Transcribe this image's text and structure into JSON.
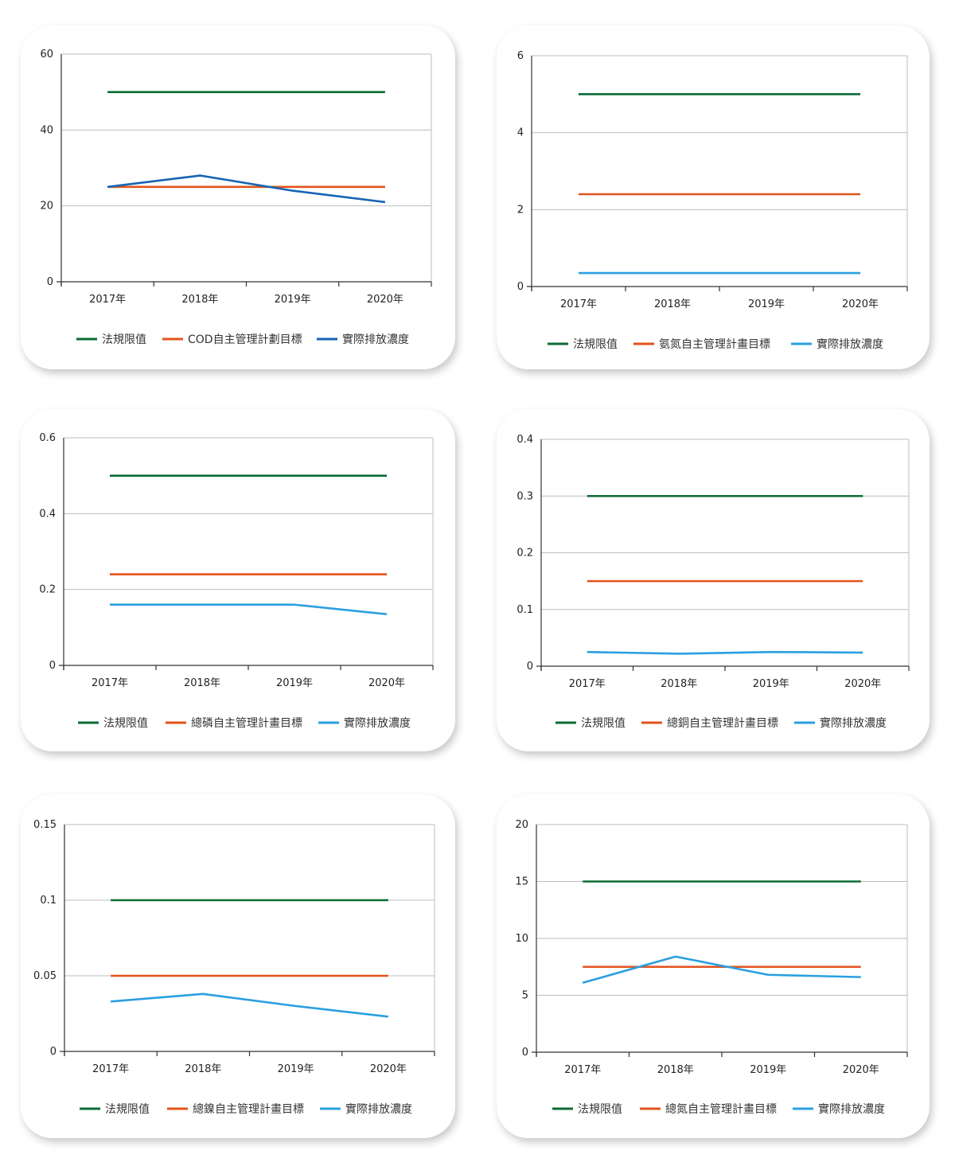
{
  "chart_data": [
    {
      "type": "line",
      "categories": [
        "2017年",
        "2018年",
        "2019年",
        "2020年"
      ],
      "ylim": [
        0,
        60
      ],
      "yticks": [
        "0",
        "20",
        "40",
        "60"
      ],
      "grid": true,
      "legend_position": "bottom",
      "series": [
        {
          "name": "法規限值",
          "color": "#0b6b34",
          "values": [
            50,
            50,
            50,
            50
          ]
        },
        {
          "name": "COD自主管理計劃目標",
          "color": "#e2531c",
          "values": [
            25,
            25,
            25,
            25
          ]
        },
        {
          "name": "實際排放濃度",
          "color": "#1565b5",
          "values": [
            25,
            28,
            24,
            21
          ]
        }
      ]
    },
    {
      "type": "line",
      "categories": [
        "2017年",
        "2018年",
        "2019年",
        "2020年"
      ],
      "ylim": [
        0,
        6
      ],
      "yticks": [
        "0",
        "2",
        "4",
        "6"
      ],
      "grid": true,
      "legend_position": "bottom",
      "series": [
        {
          "name": "法規限值",
          "color": "#0b6b34",
          "values": [
            5,
            5,
            5,
            5
          ]
        },
        {
          "name": "氨氮自主管理計畫目標",
          "color": "#e2531c",
          "values": [
            2.4,
            2.4,
            2.4,
            2.4
          ]
        },
        {
          "name": "實際排放濃度",
          "color": "#2a9fe0",
          "values": [
            0.35,
            0.35,
            0.35,
            0.35
          ]
        }
      ]
    },
    {
      "type": "line",
      "categories": [
        "2017年",
        "2018年",
        "2019年",
        "2020年"
      ],
      "ylim": [
        0,
        0.6
      ],
      "yticks": [
        "0",
        "0.2",
        "0.4",
        "0.6"
      ],
      "grid": true,
      "legend_position": "bottom",
      "series": [
        {
          "name": "法規限值",
          "color": "#0b6b34",
          "values": [
            0.5,
            0.5,
            0.5,
            0.5
          ]
        },
        {
          "name": "總磷自主管理計畫目標",
          "color": "#e2531c",
          "values": [
            0.24,
            0.24,
            0.24,
            0.24
          ]
        },
        {
          "name": "實際排放濃度",
          "color": "#2a9fe0",
          "values": [
            0.16,
            0.16,
            0.16,
            0.135
          ]
        }
      ]
    },
    {
      "type": "line",
      "categories": [
        "2017年",
        "2018年",
        "2019年",
        "2020年"
      ],
      "ylim": [
        0,
        0.4
      ],
      "yticks": [
        "0",
        "0.1",
        "0.2",
        "0.3",
        "0.4"
      ],
      "grid": true,
      "legend_position": "bottom",
      "series": [
        {
          "name": "法規限值",
          "color": "#0b6b34",
          "values": [
            0.3,
            0.3,
            0.3,
            0.3
          ]
        },
        {
          "name": "總銅自主管理計畫目標",
          "color": "#e2531c",
          "values": [
            0.15,
            0.15,
            0.15,
            0.15
          ]
        },
        {
          "name": "實際排放濃度",
          "color": "#2a9fe0",
          "values": [
            0.025,
            0.022,
            0.025,
            0.024
          ]
        }
      ]
    },
    {
      "type": "line",
      "categories": [
        "2017年",
        "2018年",
        "2019年",
        "2020年"
      ],
      "ylim": [
        0,
        0.15
      ],
      "yticks": [
        "0",
        "0.05",
        "0.1",
        "0.15"
      ],
      "grid": true,
      "legend_position": "bottom",
      "series": [
        {
          "name": "法規限值",
          "color": "#0b6b34",
          "values": [
            0.1,
            0.1,
            0.1,
            0.1
          ]
        },
        {
          "name": "總鎳自主管理計畫目標",
          "color": "#e2531c",
          "values": [
            0.05,
            0.05,
            0.05,
            0.05
          ]
        },
        {
          "name": "實際排放濃度",
          "color": "#2a9fe0",
          "values": [
            0.033,
            0.038,
            0.03,
            0.023
          ]
        }
      ]
    },
    {
      "type": "line",
      "categories": [
        "2017年",
        "2018年",
        "2019年",
        "2020年"
      ],
      "ylim": [
        0,
        20
      ],
      "yticks": [
        "0",
        "5",
        "10",
        "15",
        "20"
      ],
      "grid": true,
      "legend_position": "bottom",
      "series": [
        {
          "name": "法規限值",
          "color": "#0b6b34",
          "values": [
            15,
            15,
            15,
            15
          ]
        },
        {
          "name": "總氮自主管理計畫目標",
          "color": "#e2531c",
          "values": [
            7.5,
            7.5,
            7.5,
            7.5
          ]
        },
        {
          "name": "實際排放濃度",
          "color": "#2a9fe0",
          "values": [
            6.1,
            8.4,
            6.8,
            6.6
          ]
        }
      ]
    }
  ]
}
